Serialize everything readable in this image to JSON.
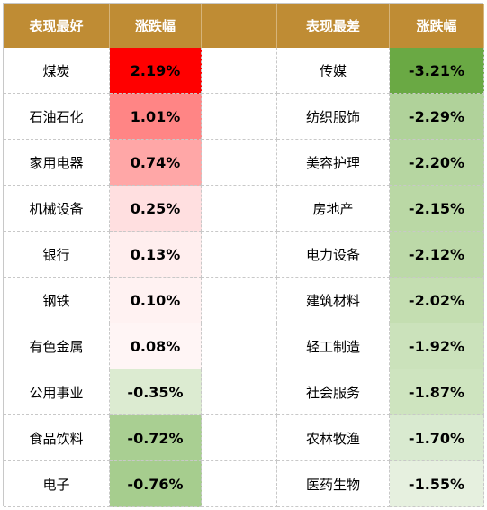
{
  "header": {
    "best_label": "表现最好",
    "change_label_left": "涨跌幅",
    "worst_label": "表现最差",
    "change_label_right": "涨跌幅"
  },
  "rows": [
    {
      "best_name": "煤炭",
      "best_change": "2.19%",
      "best_color": "#ff0000",
      "worst_name": "传媒",
      "worst_change": "-3.21%",
      "worst_color": "#6aa944"
    },
    {
      "best_name": "石油石化",
      "best_change": "1.01%",
      "best_color": "#ff8585",
      "worst_name": "纺织服饰",
      "worst_change": "-2.29%",
      "worst_color": "#b0d29a"
    },
    {
      "best_name": "家用电器",
      "best_change": "0.74%",
      "best_color": "#ffa7a7",
      "worst_name": "美容护理",
      "worst_change": "-2.20%",
      "worst_color": "#b6d6a1"
    },
    {
      "best_name": "机械设备",
      "best_change": "0.25%",
      "best_color": "#ffdfe0",
      "worst_name": "房地产",
      "worst_change": "-2.15%",
      "worst_color": "#bad8a5"
    },
    {
      "best_name": "银行",
      "best_change": "0.13%",
      "best_color": "#ffeeee",
      "worst_name": "电力设备",
      "worst_change": "-2.12%",
      "worst_color": "#bcd9a8"
    },
    {
      "best_name": "钢铁",
      "best_change": "0.10%",
      "best_color": "#fff2f2",
      "worst_name": "建筑材料",
      "worst_change": "-2.02%",
      "worst_color": "#c4deb1"
    },
    {
      "best_name": "有色金属",
      "best_change": "0.08%",
      "best_color": "#fff5f5",
      "worst_name": "轻工制造",
      "worst_change": "-1.92%",
      "worst_color": "#cbe2bb"
    },
    {
      "best_name": "公用事业",
      "best_change": "-0.35%",
      "best_color": "#dcebd1",
      "worst_name": "社会服务",
      "worst_change": "-1.87%",
      "worst_color": "#cee4bf"
    },
    {
      "best_name": "食品饮料",
      "best_change": "-0.72%",
      "best_color": "#a9cf92",
      "worst_name": "农林牧渔",
      "worst_change": "-1.70%",
      "worst_color": "#d9ead0"
    },
    {
      "best_name": "电子",
      "best_change": "-0.76%",
      "best_color": "#a6cd8e",
      "worst_name": "医药生物",
      "worst_change": "-1.55%",
      "worst_color": "#e6f0df"
    }
  ]
}
